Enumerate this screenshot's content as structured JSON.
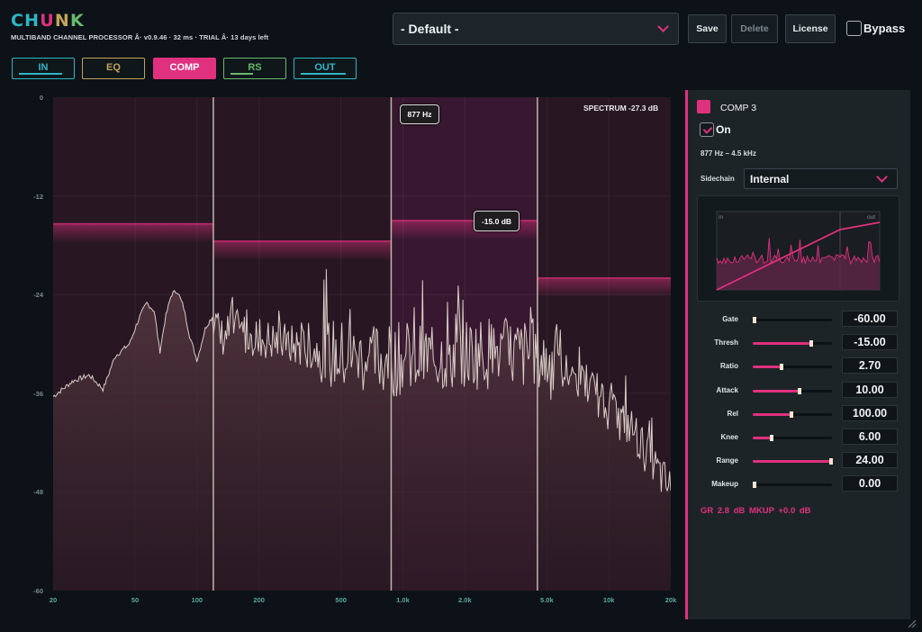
{
  "header": {
    "logo": [
      "C",
      "H",
      "U",
      "N",
      "K"
    ],
    "subtitle": "MULTIBAND CHANNEL PROCESSOR Â· v0.9.46 · 32 ms · TRIAL Â· 13 days left",
    "preset": "- Default -",
    "save_label": "Save",
    "delete_label": "Delete",
    "license_label": "License",
    "bypass_label": "Bypass",
    "bypass_checked": false
  },
  "tabs": [
    {
      "label": "IN",
      "color": "#2fb6c4",
      "active": false,
      "meter": 0.85
    },
    {
      "label": "EQ",
      "color": "#c2a35a",
      "active": false,
      "meter": 0
    },
    {
      "label": "COMP",
      "color": "#e0317e",
      "active": true,
      "meter": 0
    },
    {
      "label": "RS",
      "color": "#67b96b",
      "active": false,
      "meter": 0.45
    },
    {
      "label": "OUT",
      "color": "#2fb6c4",
      "active": false,
      "meter": 0.9
    }
  ],
  "spectrum": {
    "y_ticks": [
      "0",
      "-12",
      "-24",
      "-36",
      "-48",
      "-60"
    ],
    "x_ticks": [
      "20",
      "50",
      "100",
      "200",
      "500",
      "1.0k",
      "2.0k",
      "5.0k",
      "10k",
      "20k"
    ],
    "readout": "SPECTRUM -27.3 dB",
    "freq_tooltip": "877 Hz",
    "thresh_tooltip": "-15.0 dB",
    "bands": [
      {
        "name": "band-1",
        "range_hz": [
          20,
          120
        ],
        "thresh_db": -15.4
      },
      {
        "name": "band-2",
        "range_hz": [
          120,
          877
        ],
        "thresh_db": -17.5
      },
      {
        "name": "band-3",
        "range_hz": [
          877,
          4500
        ],
        "thresh_db": -15.0,
        "selected": true
      },
      {
        "name": "band-4",
        "range_hz": [
          4500,
          20000
        ],
        "thresh_db": -22.0
      }
    ],
    "crossovers_hz": [
      120,
      877,
      4500
    ]
  },
  "band_panel": {
    "name": "COMP 3",
    "color": "#e0317e",
    "on_label": "On",
    "on_checked": true,
    "range": "877 Hz – 4.5 kHz",
    "sidechain_label": "Sidechain",
    "sidechain_value": "Internal",
    "tf_in_label": "in",
    "tf_out_label": "out",
    "params": [
      {
        "label": "Gate",
        "value": "-60.00",
        "level": 0.0
      },
      {
        "label": "Thresh",
        "value": "-15.00",
        "level": 0.75
      },
      {
        "label": "Ratio",
        "value": "2.70",
        "level": 0.38
      },
      {
        "label": "Attack",
        "value": "10.00",
        "level": 0.6
      },
      {
        "label": "Rel",
        "value": "100.00",
        "level": 0.5
      },
      {
        "label": "Knee",
        "value": "6.00",
        "level": 0.25
      },
      {
        "label": "Range",
        "value": "24.00",
        "level": 1.0
      },
      {
        "label": "Makeup",
        "value": "0.00",
        "level": 0.0
      }
    ],
    "gr_readout": "GR 2.8 dB MKUP +0.0 dB"
  }
}
